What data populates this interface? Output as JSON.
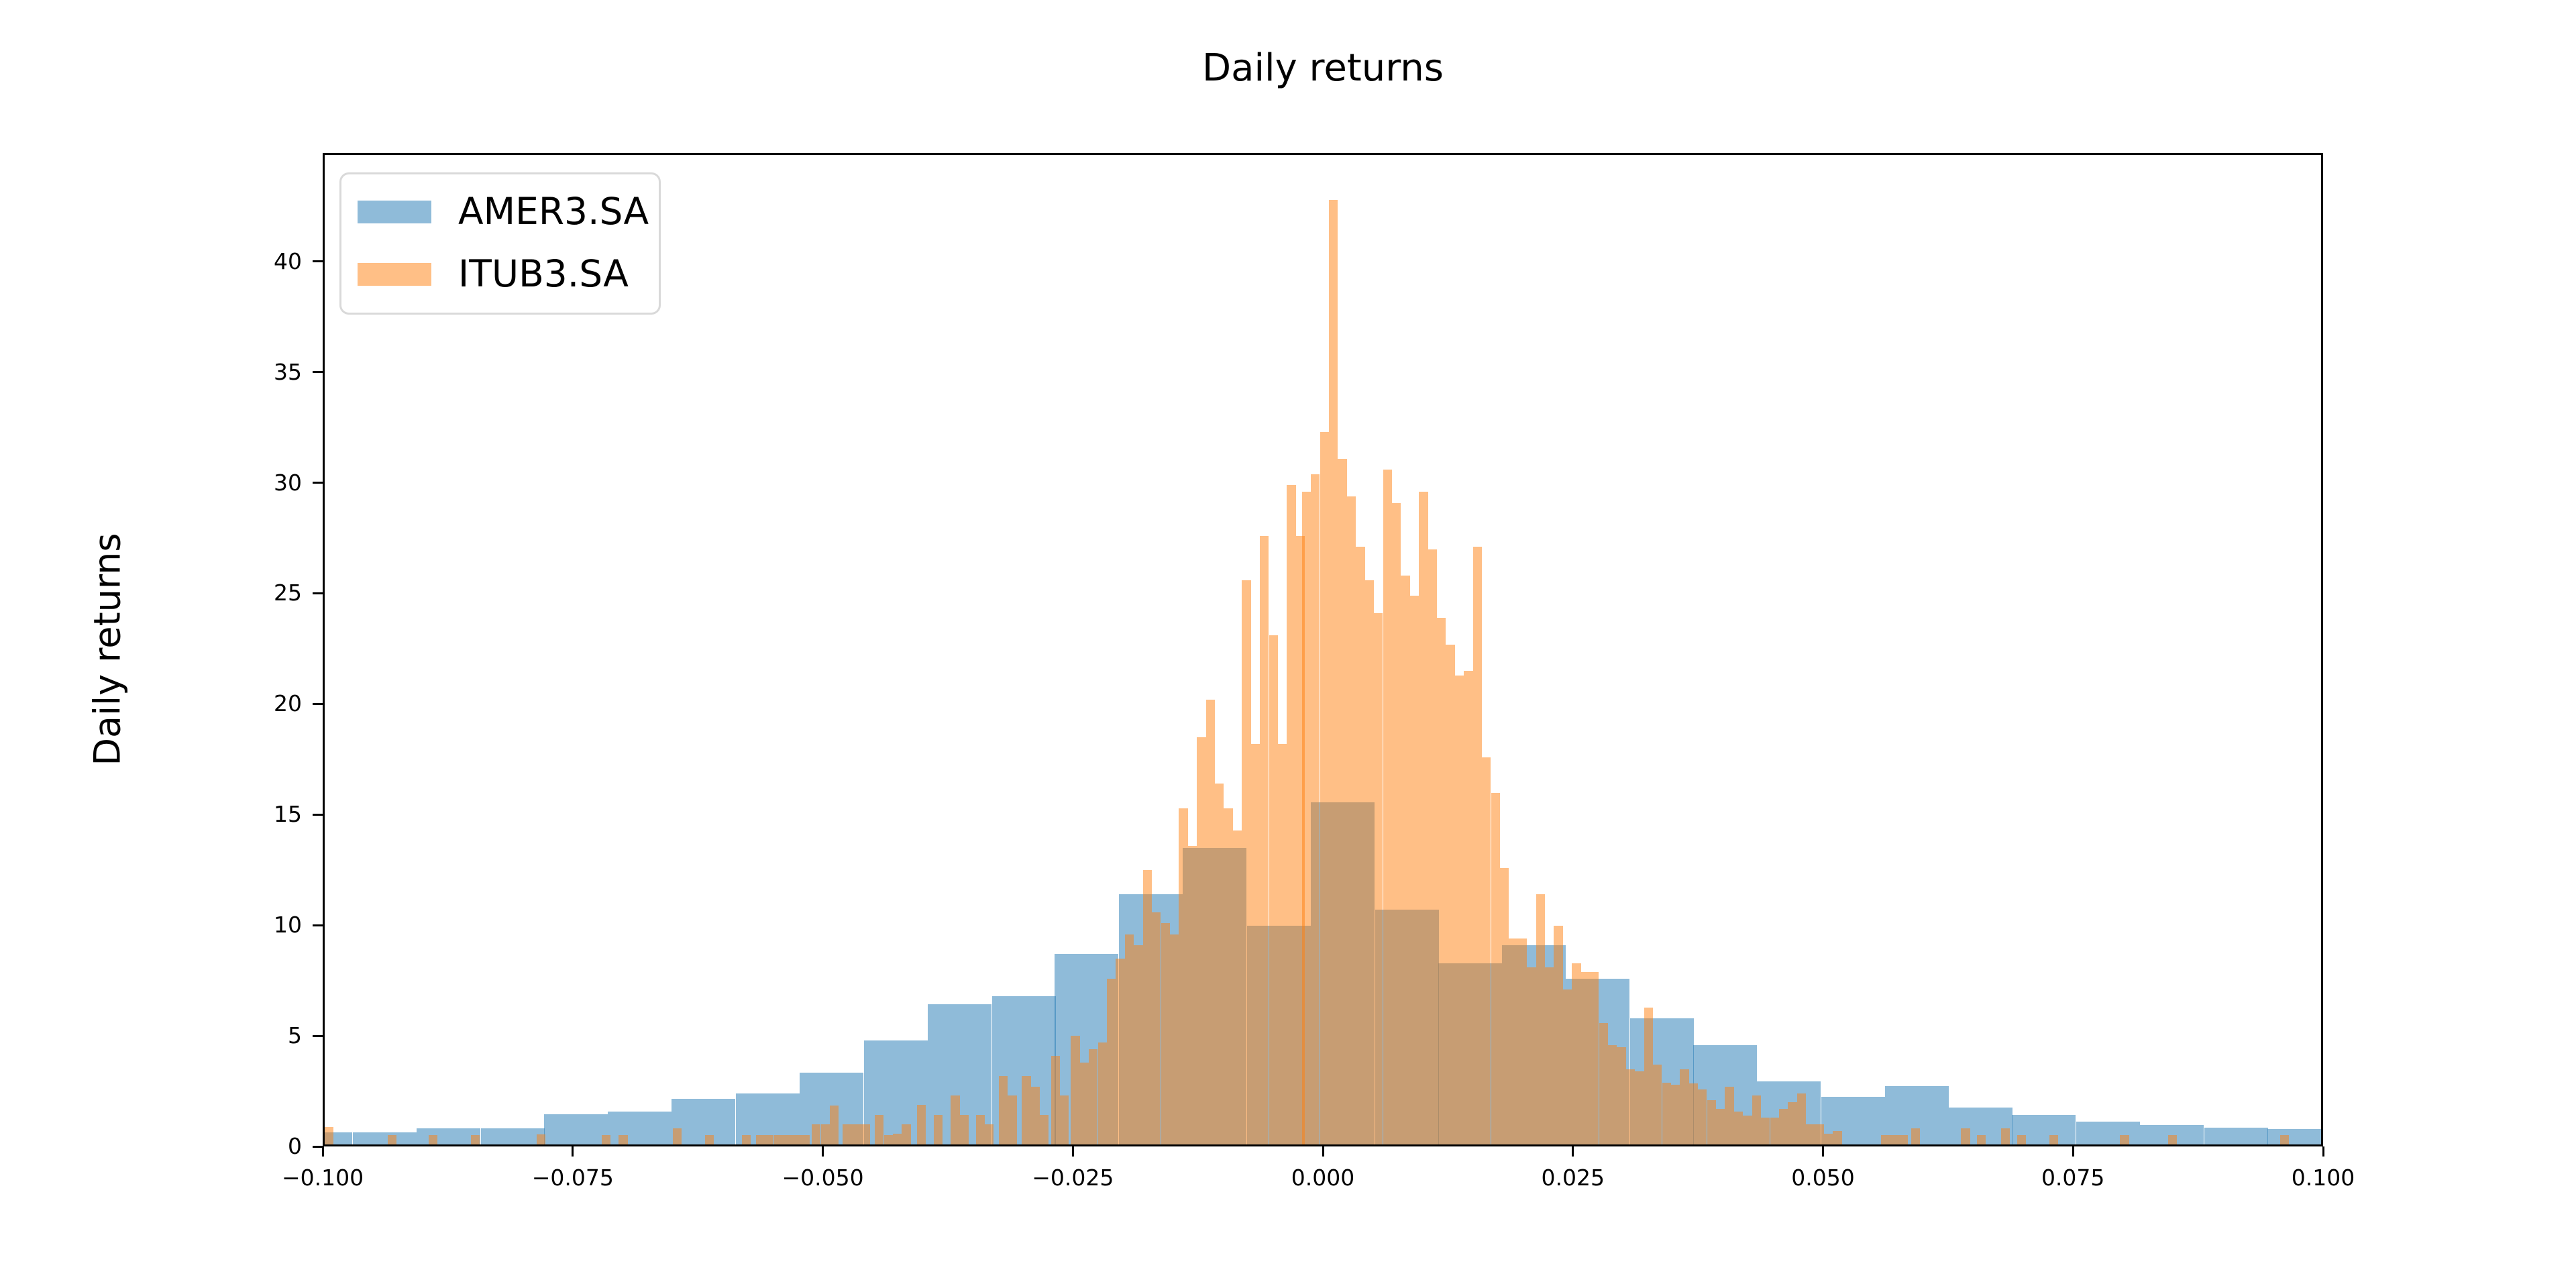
{
  "chart_data": {
    "type": "bar",
    "subtype": "overlaid-histogram",
    "title": "Daily returns",
    "xlabel": "",
    "ylabel": "Daily returns",
    "xlim": [
      -0.1,
      0.1
    ],
    "ylim": [
      0,
      44.9
    ],
    "grid": false,
    "legend_position": "upper left",
    "x_ticks": [
      {
        "v": -0.1,
        "label": "−0.100"
      },
      {
        "v": -0.075,
        "label": "−0.075"
      },
      {
        "v": -0.05,
        "label": "−0.050"
      },
      {
        "v": -0.025,
        "label": "−0.025"
      },
      {
        "v": 0.0,
        "label": "0.000"
      },
      {
        "v": 0.025,
        "label": "0.025"
      },
      {
        "v": 0.05,
        "label": "0.050"
      },
      {
        "v": 0.075,
        "label": "0.075"
      },
      {
        "v": 0.1,
        "label": "0.100"
      }
    ],
    "y_ticks": [
      {
        "v": 0,
        "label": "0"
      },
      {
        "v": 5,
        "label": "5"
      },
      {
        "v": 10,
        "label": "10"
      },
      {
        "v": 15,
        "label": "15"
      },
      {
        "v": 20,
        "label": "20"
      },
      {
        "v": 25,
        "label": "25"
      },
      {
        "v": 30,
        "label": "30"
      },
      {
        "v": 35,
        "label": "35"
      },
      {
        "v": 40,
        "label": "40"
      }
    ],
    "series": [
      {
        "name": "AMER3.SA",
        "color": "rgba(31,119,180,0.5)",
        "flat_color": "#8fbbd9",
        "bin_width": 0.00638,
        "bars": [
          [
            -0.1036,
            0.55
          ],
          [
            -0.0972,
            0.55
          ],
          [
            -0.0908,
            0.72
          ],
          [
            -0.0844,
            0.72
          ],
          [
            -0.0781,
            1.38
          ],
          [
            -0.0717,
            1.5
          ],
          [
            -0.0653,
            2.05
          ],
          [
            -0.0589,
            2.3
          ],
          [
            -0.0525,
            3.25
          ],
          [
            -0.0461,
            4.7
          ],
          [
            -0.0397,
            6.35
          ],
          [
            -0.0333,
            6.7
          ],
          [
            -0.027,
            8.6
          ],
          [
            -0.0206,
            11.3
          ],
          [
            -0.0142,
            13.4
          ],
          [
            -0.0078,
            9.9
          ],
          [
            -0.0014,
            15.45
          ],
          [
            0.005,
            10.6
          ],
          [
            0.0113,
            8.2
          ],
          [
            0.0177,
            9.0
          ],
          [
            0.0241,
            7.5
          ],
          [
            0.0305,
            5.7
          ],
          [
            0.0368,
            4.5
          ],
          [
            0.0432,
            2.85
          ],
          [
            0.0496,
            2.15
          ],
          [
            0.056,
            2.63
          ],
          [
            0.0624,
            1.66
          ],
          [
            0.0687,
            1.33
          ],
          [
            0.0751,
            1.03
          ],
          [
            0.0815,
            0.88
          ],
          [
            0.0879,
            0.76
          ],
          [
            0.0942,
            0.71
          ]
        ]
      },
      {
        "name": "ITUB3.SA",
        "color": "rgba(255,127,14,0.5)",
        "flat_color": "#ffbf86",
        "bin_width": 0.0009,
        "bars": [
          [
            -0.1,
            0.8
          ],
          [
            -0.0937,
            0.42
          ],
          [
            -0.0896,
            0.42
          ],
          [
            -0.0854,
            0.42
          ],
          [
            -0.0788,
            0.45
          ],
          [
            -0.0723,
            0.42
          ],
          [
            -0.0706,
            0.42
          ],
          [
            -0.0652,
            0.72
          ],
          [
            -0.062,
            0.42
          ],
          [
            -0.0583,
            0.42
          ],
          [
            -0.0569,
            0.42
          ],
          [
            -0.056,
            0.42
          ],
          [
            -0.0551,
            0.42
          ],
          [
            -0.0542,
            0.42
          ],
          [
            -0.0533,
            0.42
          ],
          [
            -0.0524,
            0.42
          ],
          [
            -0.0513,
            0.9
          ],
          [
            -0.0504,
            0.9
          ],
          [
            -0.0495,
            1.75
          ],
          [
            -0.0482,
            0.9
          ],
          [
            -0.0473,
            0.9
          ],
          [
            -0.0464,
            0.9
          ],
          [
            -0.045,
            1.35
          ],
          [
            -0.0441,
            0.42
          ],
          [
            -0.0432,
            0.5
          ],
          [
            -0.0423,
            0.9
          ],
          [
            -0.0408,
            1.8
          ],
          [
            -0.0391,
            1.35
          ],
          [
            -0.0374,
            2.2
          ],
          [
            -0.0365,
            1.35
          ],
          [
            -0.0349,
            1.35
          ],
          [
            -0.034,
            0.9
          ],
          [
            -0.0326,
            3.1
          ],
          [
            -0.0317,
            2.2
          ],
          [
            -0.0303,
            3.1
          ],
          [
            -0.0294,
            2.6
          ],
          [
            -0.0285,
            1.35
          ],
          [
            -0.0274,
            4.0
          ],
          [
            -0.0265,
            2.2
          ],
          [
            -0.0254,
            4.9
          ],
          [
            -0.0245,
            3.7
          ],
          [
            -0.0236,
            4.3
          ],
          [
            -0.0227,
            4.6
          ],
          [
            -0.0218,
            7.5
          ],
          [
            -0.0209,
            8.4
          ],
          [
            -0.02,
            9.5
          ],
          [
            -0.0191,
            9.0
          ],
          [
            -0.0182,
            12.4
          ],
          [
            -0.0173,
            10.5
          ],
          [
            -0.0164,
            10.0
          ],
          [
            -0.0155,
            9.5
          ],
          [
            -0.0146,
            15.2
          ],
          [
            -0.0137,
            13.5
          ],
          [
            -0.0128,
            18.4
          ],
          [
            -0.0119,
            20.1
          ],
          [
            -0.011,
            16.3
          ],
          [
            -0.0101,
            15.2
          ],
          [
            -0.0092,
            14.2
          ],
          [
            -0.0083,
            25.5
          ],
          [
            -0.0074,
            18.1
          ],
          [
            -0.0065,
            27.5
          ],
          [
            -0.0056,
            23.0
          ],
          [
            -0.0047,
            18.1
          ],
          [
            -0.0038,
            29.8
          ],
          [
            -0.0029,
            27.5
          ],
          [
            -0.0023,
            29.5
          ],
          [
            -0.0014,
            30.3
          ],
          [
            -0.0005,
            32.2
          ],
          [
            0.0004,
            42.7
          ],
          [
            0.0013,
            31.0
          ],
          [
            0.0022,
            29.3
          ],
          [
            0.0031,
            27.0
          ],
          [
            0.004,
            25.5
          ],
          [
            0.0049,
            24.0
          ],
          [
            0.0058,
            30.5
          ],
          [
            0.0067,
            29.0
          ],
          [
            0.0076,
            25.7
          ],
          [
            0.0085,
            24.8
          ],
          [
            0.0094,
            29.5
          ],
          [
            0.0103,
            26.9
          ],
          [
            0.0112,
            23.8
          ],
          [
            0.0121,
            22.6
          ],
          [
            0.013,
            21.2
          ],
          [
            0.0139,
            21.4
          ],
          [
            0.0148,
            27.0
          ],
          [
            0.0157,
            17.5
          ],
          [
            0.0166,
            15.9
          ],
          [
            0.0175,
            12.5
          ],
          [
            0.0184,
            9.3
          ],
          [
            0.0193,
            9.3
          ],
          [
            0.0202,
            8.0
          ],
          [
            0.0211,
            11.3
          ],
          [
            0.022,
            8.0
          ],
          [
            0.0229,
            9.9
          ],
          [
            0.0238,
            7.0
          ],
          [
            0.0247,
            8.2
          ],
          [
            0.0256,
            7.8
          ],
          [
            0.0265,
            7.8
          ],
          [
            0.0274,
            5.5
          ],
          [
            0.0283,
            4.5
          ],
          [
            0.0292,
            4.4
          ],
          [
            0.0301,
            3.4
          ],
          [
            0.031,
            3.3
          ],
          [
            0.0319,
            6.2
          ],
          [
            0.0328,
            3.6
          ],
          [
            0.0337,
            2.8
          ],
          [
            0.0346,
            2.7
          ],
          [
            0.0355,
            3.4
          ],
          [
            0.0364,
            2.75
          ],
          [
            0.0373,
            2.5
          ],
          [
            0.0382,
            2.0
          ],
          [
            0.0391,
            1.6
          ],
          [
            0.04,
            2.6
          ],
          [
            0.0409,
            1.5
          ],
          [
            0.0418,
            1.3
          ],
          [
            0.0427,
            2.2
          ],
          [
            0.0436,
            1.2
          ],
          [
            0.0445,
            1.2
          ],
          [
            0.0454,
            1.6
          ],
          [
            0.0463,
            1.9
          ],
          [
            0.0472,
            2.3
          ],
          [
            0.0481,
            0.9
          ],
          [
            0.049,
            0.9
          ],
          [
            0.0499,
            0.5
          ],
          [
            0.0508,
            0.6
          ],
          [
            0.0556,
            0.42
          ],
          [
            0.0565,
            0.42
          ],
          [
            0.0574,
            0.42
          ],
          [
            0.0586,
            0.73
          ],
          [
            0.0636,
            0.73
          ],
          [
            0.0652,
            0.42
          ],
          [
            0.0676,
            0.73
          ],
          [
            0.0692,
            0.42
          ],
          [
            0.0724,
            0.42
          ],
          [
            0.0795,
            0.42
          ],
          [
            0.0843,
            0.42
          ],
          [
            0.0955,
            0.42
          ]
        ]
      }
    ]
  }
}
